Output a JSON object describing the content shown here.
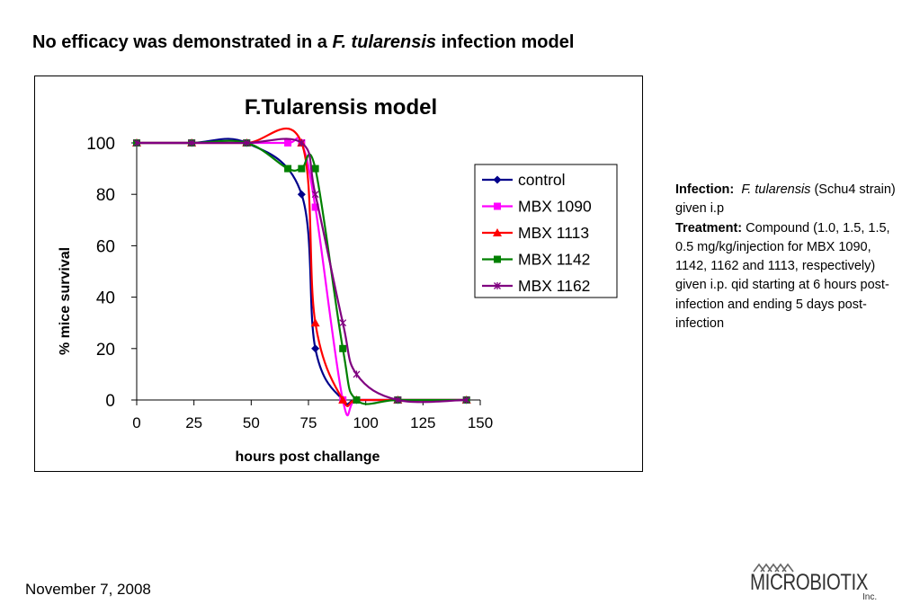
{
  "slide": {
    "title_pre": "No efficacy was demonstrated in a ",
    "title_italic": "F. tularensis",
    "title_post": " infection model"
  },
  "info": {
    "infection_label": "Infection:",
    "infection_italic": "F. tularensis",
    "infection_text": " (Schu4 strain) given i.p",
    "treatment_label": "Treatment:",
    "treatment_text": " Compound (1.0, 1.5, 1.5, 0.5 mg/kg/injection for MBX 1090, 1142, 1162 and 1113, respectively) given i.p. qid starting at 6 hours post-infection and ending 5 days post-infection"
  },
  "footer": {
    "date": "November 7, 2008"
  },
  "logo": {
    "name": "MICROBIOTIX",
    "suffix": "Inc."
  },
  "chart_data": {
    "type": "line",
    "title": "F.Tularensis model",
    "xlabel": "hours post challange",
    "ylabel": "% mice survival",
    "xlim": [
      0,
      150
    ],
    "ylim": [
      0,
      100
    ],
    "xticks": [
      0,
      25,
      50,
      75,
      100,
      125,
      150
    ],
    "yticks": [
      0,
      20,
      40,
      60,
      80,
      100
    ],
    "grid": false,
    "legend_position": "right",
    "series": [
      {
        "name": "control",
        "color": "#00008B",
        "marker": "diamond",
        "x": [
          0,
          24,
          48,
          72,
          78,
          90,
          96,
          114,
          144
        ],
        "y": [
          100,
          100,
          100,
          80,
          20,
          0,
          0,
          0,
          0
        ]
      },
      {
        "name": "MBX 1090",
        "color": "#FF00FF",
        "marker": "square",
        "x": [
          0,
          24,
          48,
          66,
          72,
          78,
          90,
          96,
          114,
          144
        ],
        "y": [
          100,
          100,
          100,
          100,
          100,
          75,
          0,
          0,
          0,
          0
        ]
      },
      {
        "name": "MBX 1113",
        "color": "#FF0000",
        "marker": "triangle",
        "x": [
          0,
          24,
          48,
          72,
          78,
          90,
          96,
          114,
          144
        ],
        "y": [
          100,
          100,
          100,
          100,
          30,
          0,
          0,
          0,
          0
        ]
      },
      {
        "name": "MBX 1142",
        "color": "#008000",
        "marker": "square",
        "x": [
          0,
          24,
          48,
          66,
          72,
          78,
          90,
          96,
          114,
          144
        ],
        "y": [
          100,
          100,
          100,
          90,
          90,
          90,
          20,
          0,
          0,
          0
        ]
      },
      {
        "name": "MBX 1162",
        "color": "#800080",
        "marker": "star",
        "x": [
          0,
          24,
          48,
          72,
          78,
          90,
          96,
          114,
          144
        ],
        "y": [
          100,
          100,
          100,
          100,
          80,
          30,
          10,
          0,
          0
        ]
      }
    ]
  }
}
